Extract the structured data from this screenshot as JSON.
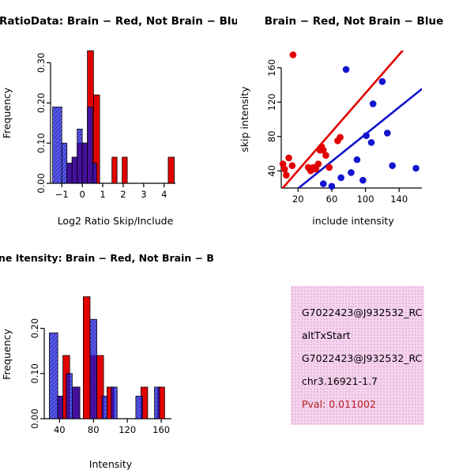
{
  "colors": {
    "red": "#e20000",
    "blue": "#1414cf",
    "axis": "#000000",
    "pval_text": "#b22222",
    "info_box_bg": "#f6d3ee",
    "info_box_dot": "#e2b2d8"
  },
  "chart_data": [
    {
      "id": "ratio_hist",
      "type": "bar",
      "subtype": "overlaid-histogram",
      "title": "RatioData: Brain − Red, Not Brain − Blu",
      "xlabel": "Log2 Ratio Skip/Include",
      "ylabel": "Frequency",
      "xlim": [
        -1.55,
        4.55
      ],
      "ylim": [
        0,
        0.35
      ],
      "xticks": [
        -1,
        0,
        1,
        2,
        3,
        4
      ],
      "xtick_labels": [
        "−1",
        "0",
        "1",
        "2",
        "3",
        "4"
      ],
      "yticks": [
        0,
        0.1,
        0.2,
        0.3
      ],
      "ytick_labels": [
        "0.00",
        "0.10",
        "0.20",
        "0.30"
      ],
      "legend": "Brain = red, Not Brain = blue",
      "series": [
        {
          "name": "Brain",
          "color": "red",
          "bars": [
            [
              -0.75,
              0.25,
              0.05
            ],
            [
              -0.5,
              0.25,
              0.065
            ],
            [
              -0.25,
              0.25,
              0.1
            ],
            [
              0,
              0.25,
              0.1
            ],
            [
              0.25,
              0.3,
              0.33
            ],
            [
              0.55,
              0.3,
              0.22
            ],
            [
              1.45,
              0.25,
              0.065
            ],
            [
              1.95,
              0.25,
              0.065
            ],
            [
              4.2,
              0.3,
              0.065
            ]
          ]
        },
        {
          "name": "Not Brain",
          "color": "blue",
          "bars": [
            [
              -1.45,
              0.45,
              0.19
            ],
            [
              -1.0,
              0.25,
              0.1
            ],
            [
              -0.75,
              0.25,
              0.05
            ],
            [
              -0.5,
              0.25,
              0.065
            ],
            [
              -0.25,
              0.25,
              0.135
            ],
            [
              0,
              0.25,
              0.1
            ],
            [
              0.25,
              0.25,
              0.19
            ],
            [
              0.5,
              0.2,
              0.05
            ]
          ]
        }
      ]
    },
    {
      "id": "scatter",
      "type": "scatter",
      "title": "Brain − Red, Not Brain − Blue",
      "xlabel": "include intensity",
      "ylabel": "skip intensity",
      "xlim": [
        0,
        167
      ],
      "ylim": [
        20,
        180
      ],
      "xticks": [
        20,
        60,
        100,
        140
      ],
      "xtick_labels": [
        "20",
        "60",
        "100",
        "140"
      ],
      "yticks": [
        40,
        80,
        120,
        160
      ],
      "ytick_labels": [
        "40",
        "80",
        "120",
        "160"
      ],
      "legend": "Brain = red, Not Brain = blue",
      "series": [
        {
          "name": "Brain",
          "color": "red",
          "points": [
            [
              2,
              48
            ],
            [
              4,
              42
            ],
            [
              6,
              35
            ],
            [
              9,
              55
            ],
            [
              13,
              46
            ],
            [
              14,
              175
            ],
            [
              32,
              44
            ],
            [
              35,
              40
            ],
            [
              38,
              44
            ],
            [
              41,
              42
            ],
            [
              44,
              48
            ],
            [
              46,
              64
            ],
            [
              48,
              68
            ],
            [
              50,
              64
            ],
            [
              53,
              58
            ],
            [
              57,
              44
            ],
            [
              67,
              75
            ],
            [
              70,
              79
            ]
          ],
          "line": [
            0,
            18,
            146,
            182
          ]
        },
        {
          "name": "Not Brain",
          "color": "blue",
          "points": [
            [
              50,
              25
            ],
            [
              60,
              22
            ],
            [
              71,
              32
            ],
            [
              77,
              158
            ],
            [
              83,
              38
            ],
            [
              90,
              53
            ],
            [
              97,
              29
            ],
            [
              101,
              81
            ],
            [
              107,
              73
            ],
            [
              109,
              118
            ],
            [
              120,
              144
            ],
            [
              126,
              84
            ],
            [
              132,
              46
            ],
            [
              160,
              43
            ]
          ],
          "line": [
            13,
            14,
            173,
            140
          ]
        }
      ]
    },
    {
      "id": "intensity_hist",
      "type": "bar",
      "subtype": "overlaid-histogram",
      "title": "ne Itensity: Brain − Red, Not Brain − B",
      "xlabel": "Intensity",
      "ylabel": "Frequency",
      "xlim": [
        22,
        172
      ],
      "ylim": [
        0,
        0.285
      ],
      "xticks": [
        40,
        80,
        120,
        160
      ],
      "xtick_labels": [
        "40",
        "80",
        "120",
        "160"
      ],
      "yticks": [
        0,
        0.1,
        0.2
      ],
      "ytick_labels": [
        "0.00",
        "0.10",
        "0.20"
      ],
      "legend": "Brain = red, Not Brain = blue",
      "series": [
        {
          "name": "Brain",
          "color": "red",
          "bars": [
            [
              38,
              6,
              0.05
            ],
            [
              44,
              8,
              0.14
            ],
            [
              55,
              9,
              0.07
            ],
            [
              68,
              8,
              0.27
            ],
            [
              76,
              8,
              0.14
            ],
            [
              84,
              8,
              0.14
            ],
            [
              96,
              8,
              0.07
            ],
            [
              136,
              8,
              0.07
            ],
            [
              156,
              8,
              0.07
            ]
          ]
        },
        {
          "name": "Not Brain",
          "color": "blue",
          "bars": [
            [
              28,
              10,
              0.19
            ],
            [
              38,
              6,
              0.05
            ],
            [
              48,
              7,
              0.1
            ],
            [
              55,
              9,
              0.07
            ],
            [
              76,
              8,
              0.22
            ],
            [
              90,
              6,
              0.05
            ],
            [
              101,
              7,
              0.07
            ],
            [
              130,
              8,
              0.05
            ],
            [
              152,
              6,
              0.07
            ]
          ]
        }
      ]
    }
  ],
  "info_box": {
    "lines": [
      "G7022423@J932532_RC",
      "altTxStart",
      "G7022423@J932532_RC",
      "chr3.16921-1.7",
      "Pval: 0.011002"
    ]
  }
}
